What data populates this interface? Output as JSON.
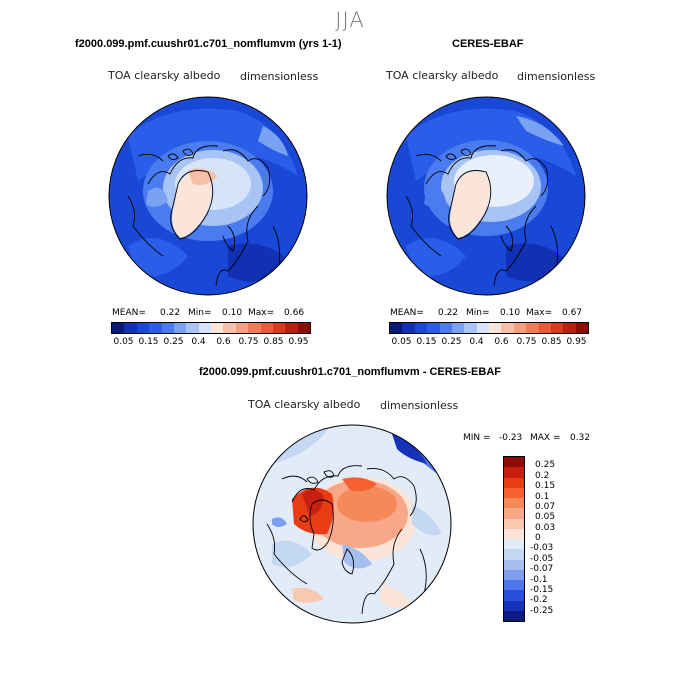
{
  "season": "JJA",
  "panels": [
    {
      "title": "f2000.099.pmf.cuushr01.c701_nomflumvm (yrs 1-1)",
      "variable": "TOA clearsky albedo",
      "units": "dimensionless",
      "mean_label": "MEAN=",
      "mean": "0.22",
      "min_label": "Min=",
      "min": "0.10",
      "max_label": "Max=",
      "max": "0.66"
    },
    {
      "title": "CERES-EBAF",
      "variable": "TOA clearsky albedo",
      "units": "dimensionless",
      "mean_label": "MEAN=",
      "mean": "0.22",
      "min_label": "Min=",
      "min": "0.10",
      "max_label": "Max=",
      "max": "0.67"
    }
  ],
  "diff_panel": {
    "title": "f2000.099.pmf.cuushr01.c701_nomflumvm - CERES-EBAF",
    "variable": "TOA clearsky albedo",
    "units": "dimensionless",
    "min_label": "MIN =",
    "min": "-0.23",
    "max_label": "MAX =",
    "max": "0.32"
  },
  "colorbar": {
    "colors": [
      "#0a1a78",
      "#1230b4",
      "#1a48d6",
      "#2a5ee8",
      "#4a7cf0",
      "#7aa2f2",
      "#a8c4f4",
      "#d6e4f8",
      "#fbe4d8",
      "#f8c0a8",
      "#f4a080",
      "#f07c58",
      "#ea5a34",
      "#d83a1c",
      "#b82010",
      "#8a0c04"
    ],
    "ticks": [
      "0.05",
      "0.15",
      "0.25",
      "0.4",
      "0.6",
      "0.75",
      "0.85",
      "0.95"
    ]
  },
  "diff_colorbar": {
    "colors": [
      "#8a0c04",
      "#c82010",
      "#e83c14",
      "#f46030",
      "#f48a5a",
      "#f8a888",
      "#fac8b0",
      "#fce4d8",
      "#e2ecf8",
      "#c4d8f4",
      "#a4bef0",
      "#7c9ef0",
      "#4e76ea",
      "#2850dc",
      "#1632b8",
      "#0a1a82"
    ],
    "ticks": [
      "0.25",
      "0.2",
      "0.15",
      "0.1",
      "0.07",
      "0.05",
      "0.03",
      "0",
      "-0.03",
      "-0.05",
      "-0.07",
      "-0.1",
      "-0.15",
      "-0.2",
      "-0.25"
    ]
  }
}
